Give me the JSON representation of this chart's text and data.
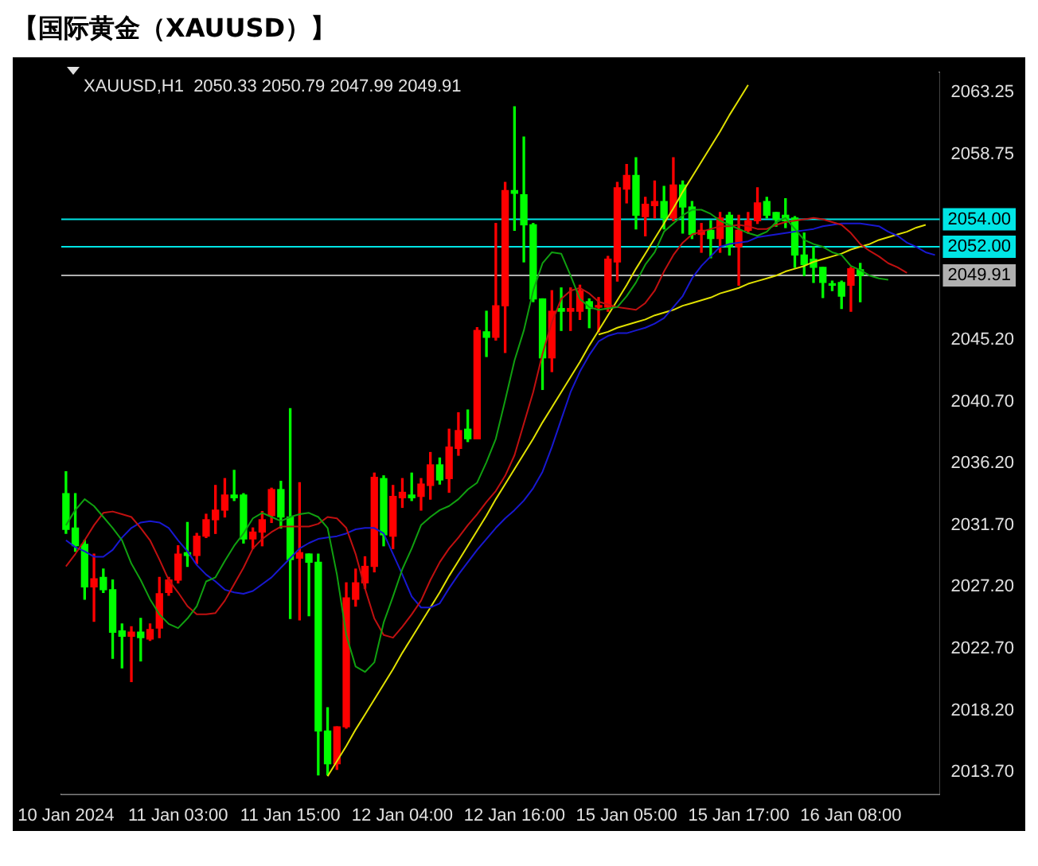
{
  "chart_data": {
    "type": "candlestick",
    "title": "【国际黄金（XAUUSD）】",
    "annotations": [
      "XAUUSD,H1  2050.33 2050.79 2047.99 2049.91"
    ],
    "categories": [
      "10 Jan 2024",
      null,
      null,
      null,
      null,
      null,
      null,
      null,
      null,
      null,
      null,
      null,
      "11 Jan 03:00",
      null,
      null,
      null,
      null,
      null,
      null,
      null,
      null,
      null,
      null,
      null,
      "11 Jan 15:00",
      null,
      null,
      null,
      null,
      null,
      null,
      null,
      null,
      null,
      null,
      null,
      "12 Jan 04:00",
      null,
      null,
      null,
      null,
      null,
      null,
      null,
      null,
      null,
      null,
      null,
      "12 Jan 16:00",
      null,
      null,
      null,
      null,
      null,
      null,
      null,
      null,
      null,
      null,
      null,
      "15 Jan 05:00",
      null,
      null,
      null,
      null,
      null,
      null,
      null,
      null,
      null,
      null,
      null,
      "15 Jan 17:00",
      null,
      null,
      null,
      null,
      null,
      null,
      null,
      null,
      null,
      null,
      null,
      "16 Jan 08:00",
      null,
      null,
      null,
      null,
      null,
      null,
      null,
      null,
      null
    ],
    "ohlc": [
      [
        2034.0,
        2035.6,
        2031.1,
        2031.4
      ],
      [
        2031.5,
        2034.0,
        2029.8,
        2030.2
      ],
      [
        2030.3,
        2030.6,
        2026.3,
        2027.2
      ],
      [
        2027.2,
        2029.6,
        2024.7,
        2027.8
      ],
      [
        2027.9,
        2028.5,
        2026.8,
        2027.0
      ],
      [
        2027.0,
        2027.7,
        2022.0,
        2023.9
      ],
      [
        2024.0,
        2024.5,
        2021.3,
        2023.6
      ],
      [
        2023.6,
        2024.3,
        2020.3,
        2023.9
      ],
      [
        2023.9,
        2024.9,
        2021.8,
        2023.5
      ],
      [
        2023.4,
        2024.5,
        2023.3,
        2024.1
      ],
      [
        2024.2,
        2027.9,
        2023.5,
        2026.7
      ],
      [
        2026.8,
        2027.9,
        2026.6,
        2027.7
      ],
      [
        2027.7,
        2030.2,
        2027.5,
        2029.6
      ],
      [
        2029.7,
        2031.9,
        2028.7,
        2029.5
      ],
      [
        2029.5,
        2031.1,
        2028.9,
        2030.9
      ],
      [
        2030.9,
        2032.5,
        2030.8,
        2032.1
      ],
      [
        2032.1,
        2034.6,
        2031.1,
        2032.8
      ],
      [
        2032.8,
        2035.1,
        2032.3,
        2033.9
      ],
      [
        2033.9,
        2035.7,
        2033.5,
        2033.7
      ],
      [
        2033.9,
        2034.0,
        2030.4,
        2030.7
      ],
      [
        2030.7,
        2031.5,
        2030.0,
        2031.2
      ],
      [
        2031.2,
        2032.7,
        2030.2,
        2032.1
      ],
      [
        2032.4,
        2034.4,
        2031.9,
        2034.3
      ],
      [
        2034.3,
        2034.9,
        2031.5,
        2032.3
      ],
      [
        2032.3,
        2040.2,
        2024.9,
        2029.2
      ],
      [
        2029.3,
        2034.8,
        2024.8,
        2029.7
      ],
      [
        2029.6,
        2029.6,
        2025.1,
        2029.0
      ],
      [
        2029.0,
        2029.6,
        2013.5,
        2016.7
      ],
      [
        2016.7,
        2018.4,
        2013.5,
        2014.3
      ],
      [
        2014.3,
        2017.0,
        2013.9,
        2017.0
      ],
      [
        2017.0,
        2027.5,
        2016.9,
        2026.4
      ],
      [
        2026.3,
        2028.5,
        2025.8,
        2027.5
      ],
      [
        2027.5,
        2029.4,
        2027.1,
        2028.7
      ],
      [
        2028.7,
        2035.5,
        2028.3,
        2035.2
      ],
      [
        2035.1,
        2035.3,
        2030.2,
        2031.0
      ],
      [
        2030.9,
        2034.6,
        2030.0,
        2033.8
      ],
      [
        2033.7,
        2035.1,
        2033.0,
        2034.1
      ],
      [
        2033.9,
        2035.5,
        2033.5,
        2033.7
      ],
      [
        2033.8,
        2035.1,
        2032.8,
        2034.7
      ],
      [
        2034.6,
        2037.0,
        2033.6,
        2036.1
      ],
      [
        2036.1,
        2036.6,
        2034.7,
        2035.0
      ],
      [
        2035.1,
        2038.7,
        2034.1,
        2037.4
      ],
      [
        2037.3,
        2039.9,
        2036.8,
        2038.6
      ],
      [
        2038.7,
        2040.1,
        2037.8,
        2038.0
      ],
      [
        2038.0,
        2046.1,
        2038.0,
        2045.9
      ],
      [
        2045.8,
        2047.3,
        2044.0,
        2045.4
      ],
      [
        2045.4,
        2053.7,
        2045.2,
        2047.7
      ],
      [
        2047.7,
        2056.7,
        2044.3,
        2056.1
      ],
      [
        2056.1,
        2062.2,
        2053.2,
        2055.9
      ],
      [
        2055.8,
        2060.0,
        2050.9,
        2053.6
      ],
      [
        2053.6,
        2053.7,
        2048.0,
        2048.2
      ],
      [
        2048.2,
        2048.2,
        2041.6,
        2043.9
      ],
      [
        2043.9,
        2048.8,
        2042.9,
        2047.3
      ],
      [
        2047.5,
        2049.0,
        2045.9,
        2047.3
      ],
      [
        2047.3,
        2049.0,
        2045.9,
        2047.5
      ],
      [
        2047.3,
        2049.2,
        2046.7,
        2048.8
      ],
      [
        2048.0,
        2048.2,
        2046.1,
        2047.5
      ],
      [
        2047.6,
        2048.3,
        2045.8,
        2047.7
      ],
      [
        2047.6,
        2051.3,
        2047.3,
        2051.1
      ],
      [
        2050.9,
        2056.7,
        2049.5,
        2056.3
      ],
      [
        2056.2,
        2058.0,
        2055.2,
        2057.2
      ],
      [
        2057.2,
        2058.5,
        2053.3,
        2054.3
      ],
      [
        2054.2,
        2055.6,
        2052.8,
        2055.1
      ],
      [
        2055.0,
        2056.8,
        2054.1,
        2055.3
      ],
      [
        2055.3,
        2056.4,
        2053.3,
        2054.1
      ],
      [
        2054.1,
        2058.5,
        2053.9,
        2056.5
      ],
      [
        2056.5,
        2056.8,
        2053.0,
        2054.9
      ],
      [
        2054.9,
        2055.3,
        2052.6,
        2052.9
      ],
      [
        2052.9,
        2053.7,
        2051.6,
        2053.2
      ],
      [
        2053.2,
        2053.9,
        2051.2,
        2052.6
      ],
      [
        2052.6,
        2054.5,
        2051.6,
        2054.1
      ],
      [
        2054.3,
        2054.5,
        2051.4,
        2052.0
      ],
      [
        2052.0,
        2054.3,
        2049.2,
        2053.2
      ],
      [
        2053.2,
        2054.5,
        2053.0,
        2053.9
      ],
      [
        2053.9,
        2056.3,
        2053.7,
        2055.2
      ],
      [
        2055.3,
        2055.6,
        2054.1,
        2054.3
      ],
      [
        2054.5,
        2054.5,
        2053.5,
        2054.0
      ],
      [
        2054.3,
        2055.5,
        2053.4,
        2053.9
      ],
      [
        2054.1,
        2054.2,
        2050.5,
        2051.4
      ],
      [
        2051.4,
        2053.0,
        2049.9,
        2050.7
      ],
      [
        2051.1,
        2052.0,
        2049.4,
        2050.5
      ],
      [
        2050.5,
        2050.5,
        2048.3,
        2049.4
      ],
      [
        2049.3,
        2049.5,
        2048.8,
        2049.2
      ],
      [
        2049.4,
        2049.5,
        2047.5,
        2048.4
      ],
      [
        2049.2,
        2050.5,
        2047.3,
        2050.4
      ],
      [
        2050.33,
        2050.79,
        2047.99,
        2049.91
      ],
      null,
      null,
      null,
      null,
      null,
      null,
      null,
      null
    ],
    "colors": [
      "#00ff00",
      "#00ff00",
      "#00ff00",
      "#ff0000",
      "#00ff00",
      "#00ff00",
      "#00ff00",
      "#ff0000",
      "#00ff00",
      "#ff0000",
      "#ff0000",
      "#ff0000",
      "#ff0000",
      "#00ff00",
      "#ff0000",
      "#ff0000",
      "#ff0000",
      "#ff0000",
      "#00ff00",
      "#00ff00",
      "#ff0000",
      "#ff0000",
      "#ff0000",
      "#00ff00",
      "#00ff00",
      "#ff0000",
      "#00ff00",
      "#00ff00",
      "#00ff00",
      "#ff0000",
      "#ff0000",
      "#ff0000",
      "#ff0000",
      "#ff0000",
      "#00ff00",
      "#ff0000",
      "#ff0000",
      "#00ff00",
      "#ff0000",
      "#ff0000",
      "#00ff00",
      "#ff0000",
      "#ff0000",
      "#00ff00",
      "#ff0000",
      "#00ff00",
      "#ff0000",
      "#ff0000",
      "#00ff00",
      "#00ff00",
      "#00ff00",
      "#00ff00",
      "#ff0000",
      "#00ff00",
      "#ff0000",
      "#ff0000",
      "#00ff00",
      "#ff0000",
      "#ff0000",
      "#ff0000",
      "#ff0000",
      "#00ff00",
      "#ff0000",
      "#ff0000",
      "#00ff00",
      "#ff0000",
      "#00ff00",
      "#00ff00",
      "#ff0000",
      "#00ff00",
      "#ff0000",
      "#00ff00",
      "#ff0000",
      "#ff0000",
      "#ff0000",
      "#00ff00",
      "#00ff00",
      "#00ff00",
      "#00ff00",
      "#00ff00",
      "#00ff00",
      "#00ff00",
      "#00ff00",
      "#00ff00",
      "#ff0000",
      "#00ff00",
      null,
      null,
      null,
      null,
      null,
      null,
      null,
      null
    ],
    "series": [
      {
        "type": "line",
        "color": "#10a010",
        "values": [
          2031.7,
          2032.8,
          2033.6,
          2033.1,
          2032.3,
          2031.5,
          2030.6,
          2028.9,
          2027.7,
          2026.3,
          2025.2,
          2024.5,
          2024.2,
          2024.9,
          2025.8,
          2027.6,
          2027.9,
          2029.1,
          2030.2,
          2031.1,
          2032.2,
          2032.6,
          2032.3,
          2032.0,
          2032.3,
          2032.5,
          2032.6,
          2032.3,
          2031.5,
          2028.1,
          2023.7,
          2021.4,
          2021.0,
          2021.7,
          2024.6,
          2026.5,
          2028.5,
          2030.0,
          2031.7,
          2032.3,
          2032.8,
          2033.1,
          2033.6,
          2034.3,
          2034.8,
          2036.3,
          2038.0,
          2040.8,
          2043.7,
          2045.9,
          2048.8,
          2050.8,
          2051.6,
          2051.5,
          2049.9,
          2048.2,
          2047.6,
          2047.4,
          2047.5,
          2047.6,
          2048.4,
          2049.4,
          2050.7,
          2051.6,
          2053.1,
          2053.7,
          2054.3,
          2054.7,
          2054.7,
          2054.4,
          2053.9,
          2053.6,
          2053.3,
          2053.0,
          2052.8,
          2053.1,
          2053.8,
          2054.1,
          2053.3,
          2052.5,
          2052.2,
          2052.0,
          2051.6,
          2051.4,
          2050.6,
          2050.3,
          2049.9,
          2049.7,
          2049.6,
          null,
          null,
          null,
          null,
          null
        ]
      },
      {
        "type": "line",
        "color": "#c01010",
        "values": [
          2028.7,
          2029.6,
          2030.6,
          2031.7,
          2032.6,
          2032.7,
          2032.5,
          2032.3,
          2031.5,
          2030.6,
          2029.2,
          2027.7,
          2026.8,
          2025.8,
          2025.2,
          2025.2,
          2025.3,
          2026.2,
          2027.4,
          2028.6,
          2030.0,
          2030.7,
          2031.2,
          2031.6,
          2031.6,
          2031.6,
          2031.6,
          2031.8,
          2032.3,
          2032.2,
          2031.5,
          2029.6,
          2027.1,
          2024.9,
          2023.7,
          2023.5,
          2024.3,
          2025.2,
          2026.2,
          2027.7,
          2029.0,
          2030.0,
          2030.8,
          2031.7,
          2032.5,
          2033.4,
          2034.2,
          2035.3,
          2036.8,
          2039.1,
          2041.4,
          2044.2,
          2046.5,
          2048.2,
          2048.8,
          2049.0,
          2048.6,
          2048.0,
          2047.8,
          2047.6,
          2047.5,
          2047.4,
          2047.9,
          2048.8,
          2050.2,
          2051.4,
          2052.3,
          2052.9,
          2053.1,
          2053.3,
          2053.5,
          2053.5,
          2053.6,
          2053.5,
          2053.3,
          2053.3,
          2053.6,
          2053.8,
          2053.9,
          2054.0,
          2054.1,
          2054.0,
          2053.8,
          2053.6,
          2053.0,
          2052.2,
          2051.7,
          2051.3,
          2050.8,
          2050.5,
          2050.1,
          null,
          null,
          null
        ]
      },
      {
        "type": "line",
        "color": "#1818d0",
        "values": [
          2030.6,
          2030.1,
          2029.8,
          2029.4,
          2029.4,
          2029.9,
          2030.8,
          2031.5,
          2031.9,
          2032.0,
          2031.9,
          2031.5,
          2030.6,
          2029.8,
          2028.8,
          2028.1,
          2027.6,
          2027.0,
          2026.8,
          2026.7,
          2026.9,
          2027.4,
          2027.9,
          2028.6,
          2029.3,
          2030.0,
          2030.4,
          2030.7,
          2030.8,
          2030.9,
          2031.1,
          2031.4,
          2031.5,
          2031.5,
          2031.1,
          2029.6,
          2028.1,
          2026.5,
          2025.7,
          2025.7,
          2026.0,
          2027.1,
          2028.1,
          2029.0,
          2029.9,
          2030.7,
          2031.5,
          2032.2,
          2032.8,
          2033.5,
          2034.4,
          2035.6,
          2037.4,
          2039.4,
          2041.4,
          2042.9,
          2044.1,
          2045.1,
          2045.5,
          2045.7,
          2045.7,
          2045.9,
          2046.1,
          2046.4,
          2046.8,
          2047.6,
          2048.4,
          2049.7,
          2050.6,
          2051.3,
          2052.0,
          2052.2,
          2052.3,
          2052.4,
          2052.7,
          2052.8,
          2052.9,
          2053.0,
          2053.1,
          2053.2,
          2053.3,
          2053.5,
          2053.6,
          2053.7,
          2053.7,
          2053.7,
          2053.6,
          2053.5,
          2053.1,
          2052.8,
          2052.3,
          2052.0,
          2051.6,
          2051.4
        ]
      },
      {
        "type": "line",
        "color": "#e0e000",
        "values": [
          null,
          null,
          null,
          null,
          null,
          null,
          null,
          null,
          null,
          null,
          null,
          null,
          null,
          null,
          null,
          null,
          null,
          null,
          null,
          null,
          null,
          null,
          null,
          null,
          null,
          null,
          null,
          null,
          2013.4,
          2014.5,
          2015.6,
          2016.8,
          2017.9,
          2019.0,
          2020.1,
          2021.2,
          2022.4,
          2023.5,
          2024.6,
          2025.7,
          2026.8,
          2028.0,
          2029.1,
          2030.2,
          2031.3,
          2032.4,
          2033.6,
          2034.7,
          2035.8,
          2036.9,
          2038.0,
          2039.2,
          2040.3,
          2041.4,
          2042.5,
          2043.6,
          2044.8,
          2045.9,
          2047.0,
          2048.1,
          2049.2,
          2050.4,
          2051.5,
          2052.6,
          2053.7,
          2054.8,
          2056.0,
          2057.1,
          2058.2,
          2059.3,
          2060.4,
          2061.6,
          2062.7,
          2063.8,
          null,
          null,
          null,
          null,
          null,
          null,
          null,
          null,
          null,
          null,
          null,
          null,
          null,
          null,
          null,
          null,
          null,
          null,
          null,
          null
        ]
      },
      {
        "type": "line",
        "color": "#e0e000",
        "values": [
          null,
          null,
          null,
          null,
          null,
          null,
          null,
          null,
          null,
          null,
          null,
          null,
          null,
          null,
          null,
          null,
          null,
          null,
          null,
          null,
          null,
          null,
          null,
          null,
          null,
          null,
          null,
          null,
          null,
          null,
          null,
          null,
          null,
          null,
          null,
          null,
          null,
          null,
          null,
          null,
          null,
          null,
          null,
          null,
          null,
          null,
          null,
          null,
          null,
          null,
          null,
          null,
          null,
          null,
          null,
          null,
          null,
          2045.6,
          2045.8,
          2046.1,
          2046.3,
          2046.5,
          2046.7,
          2047.0,
          2047.2,
          2047.4,
          2047.7,
          2047.9,
          2048.1,
          2048.3,
          2048.6,
          2048.8,
          2049.0,
          2049.3,
          2049.5,
          2049.7,
          2049.9,
          2050.2,
          2050.4,
          2050.6,
          2050.9,
          2051.1,
          2051.3,
          2051.5,
          2051.8,
          2052.0,
          2052.2,
          2052.5,
          2052.7,
          2052.9,
          2053.1,
          2053.4,
          2053.6,
          null
        ]
      }
    ],
    "ref_lines": [
      {
        "axis": "y",
        "value": 2054.0,
        "label": "2054.00",
        "color": "#00e5e5"
      },
      {
        "axis": "y",
        "value": 2052.0,
        "label": "2052.00",
        "color": "#00e5e5"
      },
      {
        "axis": "y",
        "value": 2049.91,
        "label": "2049.91",
        "color": "#b0b0b0"
      }
    ],
    "ylim": [
      2012.1,
      2064.7
    ],
    "yticks": [
      {
        "value": 2063.25,
        "label": "2063.25"
      },
      {
        "value": 2058.75,
        "label": "2058.75"
      },
      {
        "value": 2045.2,
        "label": "2045.20"
      },
      {
        "value": 2040.7,
        "label": "2040.70"
      },
      {
        "value": 2036.2,
        "label": "2036.20"
      },
      {
        "value": 2031.7,
        "label": "2031.70"
      },
      {
        "value": 2027.2,
        "label": "2027.20"
      },
      {
        "value": 2022.7,
        "label": "2022.70"
      },
      {
        "value": 2018.2,
        "label": "2018.20"
      },
      {
        "value": 2013.7,
        "label": "2013.70"
      }
    ]
  }
}
